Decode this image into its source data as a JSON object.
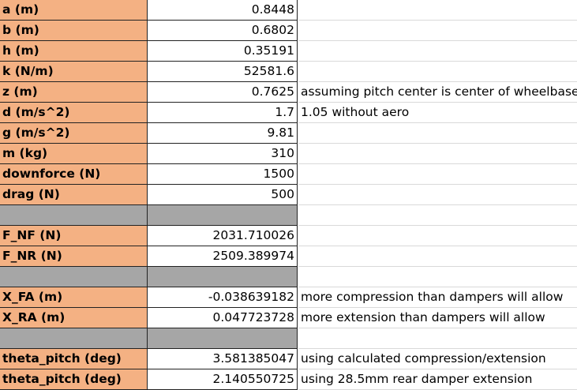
{
  "rows": [
    {
      "label": "a (m)",
      "value": "0.8448",
      "note": ""
    },
    {
      "label": "b (m)",
      "value": "0.6802",
      "note": ""
    },
    {
      "label": "h (m)",
      "value": "0.35191",
      "note": ""
    },
    {
      "label": "k (N/m)",
      "value": "52581.6",
      "note": ""
    },
    {
      "label": "z (m)",
      "value": "0.7625",
      "note": "assuming pitch center is center of wheelbase"
    },
    {
      "label": "d (m/s^2)",
      "value": "1.7",
      "note": "1.05 without aero"
    },
    {
      "label": "g (m/s^2)",
      "value": "9.81",
      "note": ""
    },
    {
      "label": "m (kg)",
      "value": "310",
      "note": ""
    },
    {
      "label": "downforce (N)",
      "value": "1500",
      "note": ""
    },
    {
      "label": "drag (N)",
      "value": "500",
      "note": ""
    },
    {
      "label": "",
      "value": "",
      "note": "",
      "separator": true
    },
    {
      "label": "F_NF (N)",
      "value": "2031.710026",
      "note": ""
    },
    {
      "label": "F_NR (N)",
      "value": "2509.389974",
      "note": ""
    },
    {
      "label": "",
      "value": "",
      "note": "",
      "separator": true
    },
    {
      "label": "X_FA (m)",
      "value": "-0.038639182",
      "note": "more compression than dampers will allow"
    },
    {
      "label": "X_RA (m)",
      "value": "0.047723728",
      "note": "more extension than dampers will allow"
    },
    {
      "label": "",
      "value": "",
      "note": "",
      "separator": true
    },
    {
      "label": "theta_pitch (deg)",
      "value": "3.581385047",
      "note": "using calculated compression/extension"
    },
    {
      "label": "theta_pitch (deg)",
      "value": "2.140550725",
      "note": "using 28.5mm rear damper extension"
    }
  ],
  "colors": {
    "label_fill": "#f4b183",
    "separator_fill": "#a6a6a6",
    "value_fill": "#ffffff",
    "grid_line": "#222222"
  }
}
